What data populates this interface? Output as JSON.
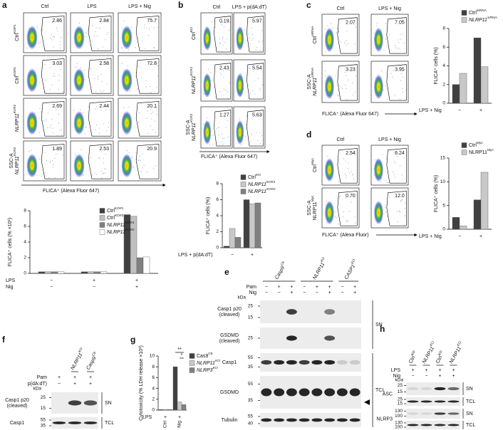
{
  "a": {
    "letter": "a",
    "columns": [
      "Ctrl",
      "LPS",
      "LPS + Nig"
    ],
    "rows": [
      {
        "name": "Ctrl",
        "sup": "KO#1"
      },
      {
        "name": "Ctrl",
        "sup": "KO#2"
      },
      {
        "name": "NLRP11",
        "sup": "KO#1",
        "italic": true
      },
      {
        "name": "NLRP11",
        "sup": "KO#2",
        "italic": true
      }
    ],
    "gates": [
      [
        "2.86",
        "2.84",
        "75.7"
      ],
      [
        "3.03",
        "2.58",
        "72.8"
      ],
      [
        "2.69",
        "2.44",
        "20.1"
      ],
      [
        "1.89",
        "2.53",
        "20.9"
      ]
    ],
    "y_axis": "SSC-A",
    "x_axis": "FLICA⁺ (Alexa Fluor 647)",
    "chart": {
      "type": "bar",
      "y_label": "FLICA⁺ cells (% ×10¹)",
      "ylim": [
        0,
        8
      ],
      "yticks": [
        0,
        2,
        4,
        6,
        8
      ],
      "series": [
        {
          "name": "Ctrl",
          "sup": "KO#1",
          "color": "#404040",
          "values": [
            0.2,
            0.2,
            7.5
          ]
        },
        {
          "name": "Ctrl",
          "sup": "KO#2",
          "color": "#c0c0c0",
          "values": [
            0.2,
            0.2,
            7.3
          ]
        },
        {
          "name": "NLRP11",
          "sup": "KO#1",
          "italic": true,
          "color": "#808080",
          "values": [
            0.2,
            0.2,
            2.0
          ]
        },
        {
          "name": "NLRP11",
          "sup": "KO#2",
          "italic": true,
          "color": "#ffffff",
          "values": [
            0.2,
            0.2,
            2.1
          ]
        }
      ],
      "conditions": [
        {
          "label": "LPS",
          "marks": [
            "−",
            "+",
            "+"
          ]
        },
        {
          "label": "Nig",
          "marks": [
            "−",
            "−",
            "+"
          ]
        }
      ]
    }
  },
  "b": {
    "letter": "b",
    "columns": [
      "Ctrl",
      "LPS + p(dA:dT)"
    ],
    "rows": [
      {
        "name": "Ctrl",
        "sup": "KO"
      },
      {
        "name": "NLRP11",
        "sup": "KO#1",
        "italic": true
      },
      {
        "name": "NLRP11",
        "sup": "KO#2",
        "italic": true
      }
    ],
    "gates": [
      [
        "0.19",
        "5.97"
      ],
      [
        "2.43",
        "5.54"
      ],
      [
        "1.27",
        "5.63"
      ]
    ],
    "y_axis": "SSC-A",
    "x_axis": "FLICA⁺ (Alexa Fluor 647)",
    "chart": {
      "type": "bar",
      "y_label": "FLICA⁺ cells (%)",
      "ylim": [
        0,
        8
      ],
      "yticks": [
        0,
        2,
        4,
        6,
        8
      ],
      "series": [
        {
          "name": "Ctrl",
          "sup": "KO",
          "color": "#404040",
          "values": [
            0.2,
            6.0
          ]
        },
        {
          "name": "NLRP11",
          "sup": "KO#1",
          "italic": true,
          "color": "#c8c8c8",
          "values": [
            2.4,
            5.5
          ]
        },
        {
          "name": "NLRP11",
          "sup": "KO#2",
          "italic": true,
          "color": "#808080",
          "values": [
            1.3,
            5.6
          ]
        }
      ],
      "conditions": [
        {
          "label": "LPS + p(dA:dT)",
          "marks": [
            "−",
            "+"
          ]
        }
      ]
    }
  },
  "c": {
    "letter": "c",
    "columns": [
      "Ctrl",
      "LPS + Nig"
    ],
    "rows": [
      {
        "name": "Ctrl",
        "sup": "siRNA"
      },
      {
        "name": "NLRP11",
        "sup": "siRNA",
        "italic": true
      }
    ],
    "gates": [
      [
        "2.07",
        "7.05"
      ],
      [
        "3.23",
        "3.95"
      ]
    ],
    "y_axis": "SSC-A",
    "x_axis": "FLICA⁺ (Alexa Fluor 647)",
    "chart": {
      "type": "bar",
      "y_label": "FLICA⁺ cells (%)",
      "ylim": [
        0,
        8
      ],
      "yticks": [
        0,
        2,
        4,
        6,
        8
      ],
      "series": [
        {
          "name": "Ctrl",
          "sup": "siRNA",
          "color": "#404040",
          "values": [
            2.0,
            7.0
          ]
        },
        {
          "name": "NLRP11",
          "sup": "siRNA",
          "italic": true,
          "color": "#c8c8c8",
          "values": [
            3.2,
            3.9
          ]
        }
      ],
      "conditions": [
        {
          "label": "LPS + Nig",
          "marks": [
            "−",
            "+"
          ]
        }
      ]
    }
  },
  "d": {
    "letter": "d",
    "columns": [
      "Ctrl",
      "LPS + Nig"
    ],
    "rows": [
      {
        "name": "Ctrl",
        "sup": "Myc"
      },
      {
        "name": "NLRP11",
        "sup": "Myc"
      }
    ],
    "gates": [
      [
        "2.54",
        "6.24"
      ],
      [
        "0.70",
        "12.0"
      ]
    ],
    "y_axis": "SSC-A",
    "x_axis": "FLICA⁺ (Alexa Fluor)",
    "chart": {
      "type": "bar",
      "y_label": "FLICA⁺ cells (%)",
      "ylim": [
        0,
        15
      ],
      "yticks": [
        0,
        5,
        10,
        15
      ],
      "series": [
        {
          "name": "Ctrl",
          "sup": "Myc",
          "color": "#404040",
          "values": [
            2.5,
            6.2
          ]
        },
        {
          "name": "NLRP11",
          "sup": "Myc",
          "color": "#c8c8c8",
          "values": [
            0.7,
            12.0
          ]
        }
      ],
      "conditions": [
        {
          "label": "LPS + Nig",
          "marks": [
            "−",
            "+"
          ]
        }
      ]
    }
  },
  "e": {
    "letter": "e",
    "headers": [
      {
        "name": "Casp9",
        "sup": "Ctr",
        "italic": true
      },
      {
        "name": "NLRP11",
        "sup": "KO",
        "italic": true
      },
      {
        "name": "CASP1",
        "sup": "KO",
        "italic": true
      }
    ],
    "treatments": [
      {
        "label": "Pam",
        "marks": [
          "−",
          "+",
          "+",
          "−",
          "+",
          "+",
          "−",
          "+"
        ]
      },
      {
        "label": "Nig",
        "marks": [
          "−",
          "−",
          "+",
          "−",
          "−",
          "+",
          "−",
          "+"
        ]
      }
    ],
    "kda_header": "kDa",
    "blots": [
      {
        "label": [
          "Casp1 p20",
          "(cleaved)"
        ],
        "kda": [
          "25",
          "15"
        ]
      },
      {
        "label": [
          "GSDMD",
          "(cleaved)"
        ],
        "kda": [
          "25"
        ]
      },
      {
        "label": [
          "Casp1"
        ],
        "kda": [
          "55",
          "35"
        ]
      },
      {
        "label": [
          "GSDMD"
        ],
        "kda": [
          "55",
          "35"
        ]
      },
      {
        "label": [
          "Tubulin"
        ],
        "kda": [
          "55",
          "40"
        ]
      }
    ],
    "fractions": [
      "SN",
      "TCL"
    ]
  },
  "f": {
    "letter": "f",
    "headers": [
      {
        "name": "NLRP11",
        "sup": "KO",
        "italic": true
      },
      {
        "name": "Casp9",
        "sup": "Ctr",
        "italic": true
      }
    ],
    "treatments": [
      {
        "label": "Pam",
        "marks": [
          "+",
          "+",
          "+"
        ]
      },
      {
        "label": "p(dA:dT)",
        "marks": [
          "−",
          "+",
          "+"
        ]
      }
    ],
    "kda_header": "kDa",
    "blots": [
      {
        "label": [
          "Casp1 p20",
          "(cleaved)"
        ],
        "kda": [
          "25",
          "15"
        ]
      },
      {
        "label": [
          "Casp1"
        ],
        "kda": [
          "55",
          "35"
        ]
      }
    ],
    "fractions": [
      "SN",
      "TCL"
    ]
  },
  "g": {
    "letter": "g",
    "chart": {
      "type": "bar",
      "y_label": "Cytotoxicity (% LDH release ×10¹)",
      "ylim": [
        0,
        10
      ],
      "yticks": [
        0,
        2,
        4,
        6,
        8,
        10
      ],
      "categories": [
        "Ctrl",
        "Nig"
      ],
      "series": [
        {
          "name": "Cas9",
          "sup": "Ctr",
          "color": "#404040",
          "values": [
            0.1,
            8.0
          ]
        },
        {
          "name": "NLRP11",
          "sup": "KO",
          "italic": true,
          "color": "#c8c8c8",
          "values": [
            0.1,
            1.5
          ]
        },
        {
          "name": "NLRP3",
          "sup": "KO",
          "italic": true,
          "color": "#808080",
          "values": [
            0.1,
            1.0
          ]
        }
      ],
      "conditions": [
        {
          "label": "LPS",
          "marks": [
            "+",
            "+"
          ]
        }
      ],
      "annotations": [
        "**",
        "*"
      ]
    }
  },
  "h": {
    "letter": "h",
    "headers": [
      {
        "name": "Ctrl",
        "sup": "KO"
      },
      {
        "name": "NLRP11",
        "sup": "KO",
        "italic": true
      },
      {
        "name": "Ctrl",
        "sup": "KO"
      },
      {
        "name": "NLRP11",
        "sup": "KO",
        "italic": true
      }
    ],
    "treatments": [
      {
        "label": "LPS",
        "marks": [
          "+",
          "+",
          "+",
          "+"
        ]
      },
      {
        "label": "Nig",
        "marks": [
          "−",
          "−",
          "+",
          "+"
        ]
      }
    ],
    "kda_header": "kDa",
    "groups": [
      {
        "label": "ASC",
        "blots": [
          {
            "fraction": "SN",
            "kda": [
              "25",
              "15"
            ]
          },
          {
            "fraction": "TCL",
            "kda": [
              "25",
              "15"
            ]
          }
        ]
      },
      {
        "label": "NLRP3",
        "blots": [
          {
            "fraction": "SN",
            "kda": [
              "130",
              "100"
            ]
          },
          {
            "fraction": "TCL",
            "kda": [
              "130",
              "100"
            ]
          }
        ]
      }
    ]
  }
}
